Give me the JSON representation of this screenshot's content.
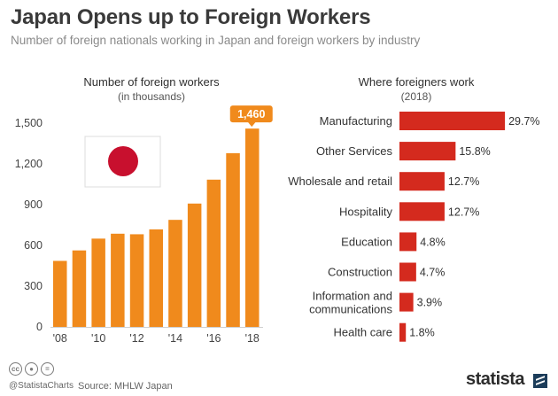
{
  "header": {
    "title": "Japan Opens up to Foreign Workers",
    "subtitle": "Number of foreign nationals working in Japan and foreign workers by industry"
  },
  "left_chart": {
    "title": "Number of foreign workers",
    "subtitle": "(in thousands)"
  },
  "right_chart": {
    "title": "Where foreigners work",
    "subtitle": "(2018)"
  },
  "footer": {
    "handle": "@StatistaCharts",
    "source": "Source: MHLW Japan",
    "brand": "statista",
    "icons": [
      "cc-icon",
      "by-icon",
      "equals-icon"
    ]
  },
  "colors": {
    "bar_orange": "#f08a1c",
    "bar_red": "#d42a1e",
    "flag_red": "#c8102e",
    "callout_orange": "#f08a1c"
  },
  "chart_data": [
    {
      "type": "bar",
      "categories": [
        "'08",
        "'09",
        "'10",
        "'11",
        "'12",
        "'13",
        "'14",
        "'15",
        "'16",
        "'17",
        "'18"
      ],
      "tick_labels": [
        "'08",
        "'10",
        "'12",
        "'14",
        "'16",
        "'18"
      ],
      "values": [
        486,
        563,
        650,
        686,
        682,
        718,
        788,
        908,
        1084,
        1279,
        1460
      ],
      "highlight_label": "1,460",
      "title": "Number of foreign workers",
      "ylabel": "(in thousands)",
      "yticks": [
        "0",
        "300",
        "600",
        "900",
        "1,200",
        "1,500"
      ],
      "ylim": [
        0,
        1500
      ],
      "grid": false
    },
    {
      "type": "bar",
      "orientation": "horizontal",
      "title": "Where foreigners work",
      "subtitle": "(2018)",
      "categories": [
        [
          "Manufacturing"
        ],
        [
          "Other Services"
        ],
        [
          "Wholesale and retail"
        ],
        [
          "Hospitality"
        ],
        [
          "Education"
        ],
        [
          "Construction"
        ],
        [
          "Information and",
          "communications"
        ],
        [
          "Health care"
        ]
      ],
      "values": [
        29.7,
        15.8,
        12.7,
        12.7,
        4.8,
        4.7,
        3.9,
        1.8
      ],
      "value_labels": [
        "29.7%",
        "15.8%",
        "12.7%",
        "12.7%",
        "4.8%",
        "4.7%",
        "3.9%",
        "1.8%"
      ],
      "xlim": [
        0,
        30
      ]
    }
  ]
}
